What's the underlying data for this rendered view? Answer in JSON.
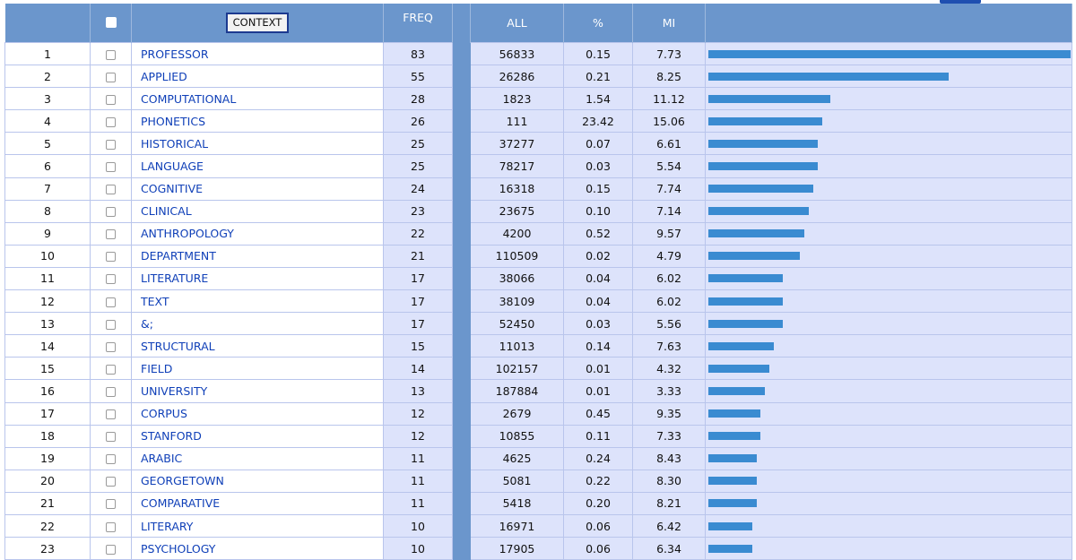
{
  "header": {
    "context_label": "CONTEXT",
    "freq_label": "FREQ",
    "all_label": "ALL",
    "pct_label": "%",
    "mi_label": "MI"
  },
  "max_freq": 83,
  "rows": [
    {
      "n": "1",
      "word": "PROFESSOR",
      "freq": 83,
      "all": "56833",
      "pct": "0.15",
      "mi": "7.73"
    },
    {
      "n": "2",
      "word": "APPLIED",
      "freq": 55,
      "all": "26286",
      "pct": "0.21",
      "mi": "8.25"
    },
    {
      "n": "3",
      "word": "COMPUTATIONAL",
      "freq": 28,
      "all": "1823",
      "pct": "1.54",
      "mi": "11.12"
    },
    {
      "n": "4",
      "word": "PHONETICS",
      "freq": 26,
      "all": "111",
      "pct": "23.42",
      "mi": "15.06"
    },
    {
      "n": "5",
      "word": "HISTORICAL",
      "freq": 25,
      "all": "37277",
      "pct": "0.07",
      "mi": "6.61"
    },
    {
      "n": "6",
      "word": "LANGUAGE",
      "freq": 25,
      "all": "78217",
      "pct": "0.03",
      "mi": "5.54"
    },
    {
      "n": "7",
      "word": "COGNITIVE",
      "freq": 24,
      "all": "16318",
      "pct": "0.15",
      "mi": "7.74"
    },
    {
      "n": "8",
      "word": "CLINICAL",
      "freq": 23,
      "all": "23675",
      "pct": "0.10",
      "mi": "7.14"
    },
    {
      "n": "9",
      "word": "ANTHROPOLOGY",
      "freq": 22,
      "all": "4200",
      "pct": "0.52",
      "mi": "9.57"
    },
    {
      "n": "10",
      "word": "DEPARTMENT",
      "freq": 21,
      "all": "110509",
      "pct": "0.02",
      "mi": "4.79"
    },
    {
      "n": "11",
      "word": "LITERATURE",
      "freq": 17,
      "all": "38066",
      "pct": "0.04",
      "mi": "6.02"
    },
    {
      "n": "12",
      "word": "TEXT",
      "freq": 17,
      "all": "38109",
      "pct": "0.04",
      "mi": "6.02"
    },
    {
      "n": "13",
      "word": "&;",
      "freq": 17,
      "all": "52450",
      "pct": "0.03",
      "mi": "5.56"
    },
    {
      "n": "14",
      "word": "STRUCTURAL",
      "freq": 15,
      "all": "11013",
      "pct": "0.14",
      "mi": "7.63"
    },
    {
      "n": "15",
      "word": "FIELD",
      "freq": 14,
      "all": "102157",
      "pct": "0.01",
      "mi": "4.32"
    },
    {
      "n": "16",
      "word": "UNIVERSITY",
      "freq": 13,
      "all": "187884",
      "pct": "0.01",
      "mi": "3.33"
    },
    {
      "n": "17",
      "word": "CORPUS",
      "freq": 12,
      "all": "2679",
      "pct": "0.45",
      "mi": "9.35"
    },
    {
      "n": "18",
      "word": "STANFORD",
      "freq": 12,
      "all": "10855",
      "pct": "0.11",
      "mi": "7.33"
    },
    {
      "n": "19",
      "word": "ARABIC",
      "freq": 11,
      "all": "4625",
      "pct": "0.24",
      "mi": "8.43"
    },
    {
      "n": "20",
      "word": "GEORGETOWN",
      "freq": 11,
      "all": "5081",
      "pct": "0.22",
      "mi": "8.30"
    },
    {
      "n": "21",
      "word": "COMPARATIVE",
      "freq": 11,
      "all": "5418",
      "pct": "0.20",
      "mi": "8.21"
    },
    {
      "n": "22",
      "word": "LITERARY",
      "freq": 10,
      "all": "16971",
      "pct": "0.06",
      "mi": "6.42"
    },
    {
      "n": "23",
      "word": "PSYCHOLOGY",
      "freq": 10,
      "all": "17905",
      "pct": "0.06",
      "mi": "6.34"
    }
  ]
}
